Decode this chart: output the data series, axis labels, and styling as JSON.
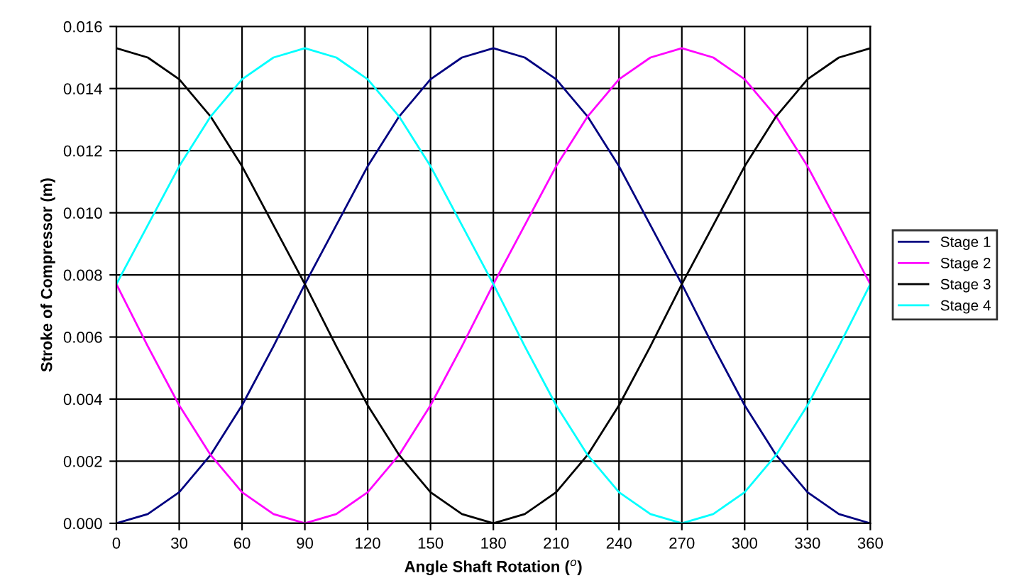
{
  "chart_data": {
    "type": "line",
    "xlabel": "Angle Shaft Rotation ($^{o}$)",
    "ylabel": "Stroke of Compressor (m)",
    "x": [
      0,
      15,
      30,
      45,
      60,
      75,
      90,
      105,
      120,
      135,
      150,
      165,
      180,
      195,
      210,
      225,
      240,
      255,
      270,
      285,
      300,
      315,
      330,
      345,
      360
    ],
    "series": [
      {
        "name": "Stage 1",
        "color": "#000080",
        "values": [
          0,
          0.0003,
          0.001,
          0.0022,
          0.0038,
          0.0057,
          0.0077,
          0.0096,
          0.0115,
          0.0131,
          0.0143,
          0.015,
          0.0153,
          0.015,
          0.0143,
          0.0131,
          0.0115,
          0.0096,
          0.0077,
          0.0057,
          0.0038,
          0.0022,
          0.001,
          0.0003,
          0
        ]
      },
      {
        "name": "Stage 2",
        "color": "#ff00ff",
        "values": [
          0.0077,
          0.0057,
          0.0038,
          0.0022,
          0.001,
          0.0003,
          0,
          0.0003,
          0.001,
          0.0022,
          0.0038,
          0.0057,
          0.0077,
          0.0096,
          0.0115,
          0.0131,
          0.0143,
          0.015,
          0.0153,
          0.015,
          0.0143,
          0.0131,
          0.0115,
          0.0096,
          0.0077
        ]
      },
      {
        "name": "Stage 3",
        "color": "#000000",
        "values": [
          0.0153,
          0.015,
          0.0143,
          0.0131,
          0.0115,
          0.0096,
          0.0077,
          0.0057,
          0.0038,
          0.0022,
          0.001,
          0.0003,
          0,
          0.0003,
          0.001,
          0.0022,
          0.0038,
          0.0057,
          0.0077,
          0.0096,
          0.0115,
          0.0131,
          0.0143,
          0.015,
          0.0153
        ]
      },
      {
        "name": "Stage 4",
        "color": "#00ffff",
        "values": [
          0.0077,
          0.0096,
          0.0115,
          0.0131,
          0.0143,
          0.015,
          0.0153,
          0.015,
          0.0143,
          0.0131,
          0.0115,
          0.0096,
          0.0077,
          0.0057,
          0.0038,
          0.0022,
          0.001,
          0.0003,
          0,
          0.0003,
          0.001,
          0.0022,
          0.0038,
          0.0057,
          0.0077
        ]
      }
    ],
    "xlim": [
      0,
      360
    ],
    "xticks": [
      0,
      30,
      60,
      90,
      120,
      150,
      180,
      210,
      240,
      270,
      300,
      330,
      360
    ],
    "ylim": [
      0,
      0.016
    ],
    "yticks": [
      {
        "value": 0,
        "label": "0.000"
      },
      {
        "value": 0.002,
        "label": "0.002"
      },
      {
        "value": 0.004,
        "label": "0.004"
      },
      {
        "value": 0.006,
        "label": "0.006"
      },
      {
        "value": 0.008,
        "label": "0.008"
      },
      {
        "value": 0.01,
        "label": "0.010"
      },
      {
        "value": 0.012,
        "label": "0.012"
      },
      {
        "value": 0.014,
        "label": "0.014"
      },
      {
        "value": 0.016,
        "label": "0.016"
      }
    ],
    "grid": true,
    "legend": "right",
    "marker": "none",
    "line_style": "solid"
  }
}
